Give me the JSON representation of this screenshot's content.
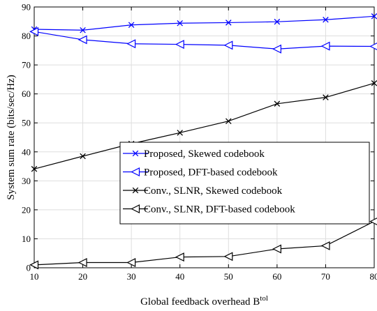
{
  "chart_data": {
    "type": "line",
    "title": "",
    "xlabel": "Global feedback overhead B",
    "xlabel_sup": "tol",
    "ylabel": "System sum rate (bits/sec/Hz)",
    "xlim": [
      10,
      80
    ],
    "ylim": [
      0,
      90
    ],
    "xticks": [
      10,
      20,
      30,
      40,
      50,
      60,
      70,
      80
    ],
    "yticks": [
      0,
      10,
      20,
      30,
      40,
      50,
      60,
      70,
      80,
      90
    ],
    "grid": true,
    "legend_position": "lower-right",
    "x": [
      10,
      20,
      30,
      40,
      50,
      60,
      70,
      80
    ],
    "series": [
      {
        "name": "Proposed, Skewed codebook",
        "color": "#0000ff",
        "marker": "x",
        "values": [
          82.3,
          82.0,
          83.8,
          84.4,
          84.6,
          84.9,
          85.6,
          86.8
        ]
      },
      {
        "name": "Proposed, DFT-based codebook",
        "color": "#0000ff",
        "marker": "triangle-left",
        "values": [
          81.5,
          78.7,
          77.3,
          77.1,
          76.8,
          75.5,
          76.5,
          76.4
        ]
      },
      {
        "name": "Conv., SLNR, Skewed codebook",
        "color": "#000000",
        "marker": "x",
        "values": [
          34.1,
          38.5,
          42.8,
          46.6,
          50.6,
          56.6,
          58.8,
          63.7
        ]
      },
      {
        "name": "Conv., SLNR, DFT-based codebook",
        "color": "#000000",
        "marker": "triangle-left",
        "values": [
          1.0,
          1.8,
          1.8,
          3.7,
          3.9,
          6.5,
          7.6,
          16.0
        ]
      }
    ]
  }
}
